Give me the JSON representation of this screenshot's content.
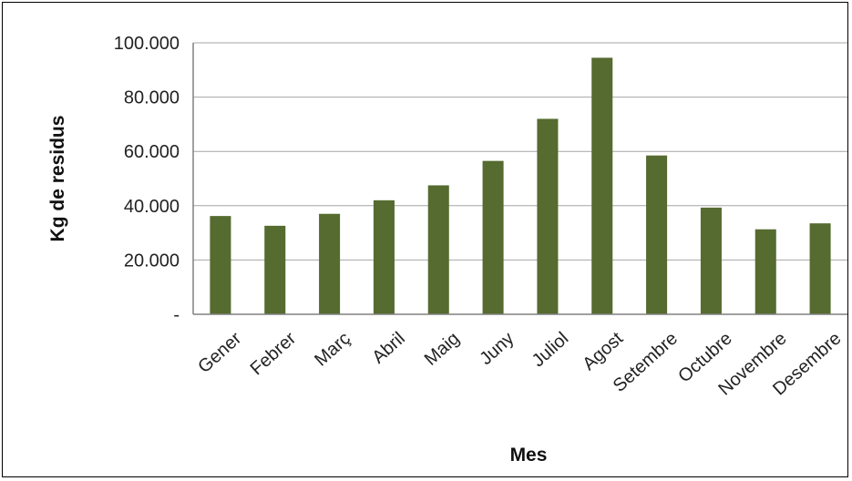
{
  "chart_data": {
    "type": "bar",
    "categories": [
      "Gener",
      "Febrer",
      "Març",
      "Abril",
      "Maig",
      "Juny",
      "Juliol",
      "Agost",
      "Setembre",
      "Octubre",
      "Novembre",
      "Desembre"
    ],
    "values": [
      36200,
      32600,
      37000,
      42000,
      47500,
      56500,
      72000,
      94500,
      58500,
      39300,
      31300,
      33500
    ],
    "xlabel": "Mes",
    "ylabel": "Kg de residus",
    "ylim": [
      0,
      100000
    ],
    "yticks": [
      0,
      20000,
      40000,
      60000,
      80000,
      100000
    ],
    "ytick_labels": [
      "-",
      "20.000",
      "40.000",
      "60.000",
      "80.000",
      "100.000"
    ],
    "grid": true,
    "legend": "none",
    "colors": {
      "bar": "#556b2f",
      "grid": "#a6a6a6",
      "axis": "#808080"
    }
  }
}
